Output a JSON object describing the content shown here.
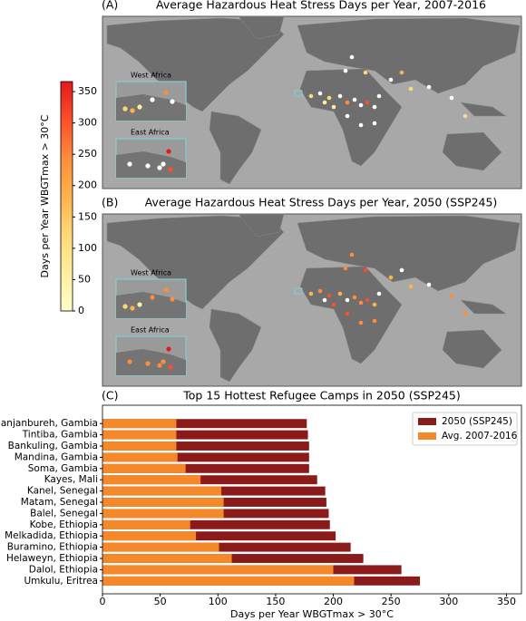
{
  "chart_data": [
    {
      "type": "map",
      "panel": "(A)",
      "title": "Average Hazardous Heat Stress Days per Year, 2007-2016",
      "insets": [
        "West Africa",
        "East Africa"
      ]
    },
    {
      "type": "map",
      "panel": "(B)",
      "title": "Average Hazardous Heat Stress Days per Year, 2050 (SSP245)",
      "insets": [
        "West Africa",
        "East Africa"
      ]
    },
    {
      "type": "colorbar",
      "label": "Days per Year WBGTmax > 30°C",
      "ylim": [
        0,
        366
      ],
      "yticks": [
        0,
        50,
        100,
        150,
        200,
        250,
        300,
        350
      ],
      "colors": [
        "#ffffcc",
        "#ffeda0",
        "#fed976",
        "#feb24c",
        "#fd8d3c",
        "#fc4e2a",
        "#e31a1c"
      ]
    },
    {
      "type": "barh",
      "panel": "(C)",
      "title": "Top 15 Hottest Refugee Camps in 2050 (SSP245)",
      "xlabel": "Days per Year WBGTmax > 30°C",
      "categories": [
        "Janjanbureh, Gambia",
        "Tintiba, Gambia",
        "Bankuling, Gambia",
        "Mandina, Gambia",
        "Soma, Gambia",
        "Kayes, Mali",
        "Kanel, Senegal",
        "Matam, Senegal",
        "Balel, Senegal",
        "Kobe, Ethiopia",
        "Melkadida, Ethiopia",
        "Buramino, Ethiopia",
        "Helaweyn, Ethiopia",
        "Dalol, Ethiopia",
        "Umkulu, Eritrea"
      ],
      "series": [
        {
          "name": "2050 (SSP245)",
          "color": "#8b1a1a",
          "values": [
            177,
            178,
            179,
            179,
            179,
            186,
            193,
            194,
            196,
            197,
            202,
            215,
            226,
            259,
            275
          ]
        },
        {
          "name": "Avg. 2007-2016",
          "color": "#f5892a",
          "values": [
            64,
            64,
            64,
            65,
            72,
            85,
            103,
            105,
            105,
            76,
            81,
            101,
            112,
            200,
            218
          ]
        }
      ],
      "xlim": [
        0,
        363
      ],
      "xticks": [
        0,
        50,
        100,
        150,
        200,
        250,
        300,
        350
      ],
      "legend": "upper right"
    }
  ]
}
